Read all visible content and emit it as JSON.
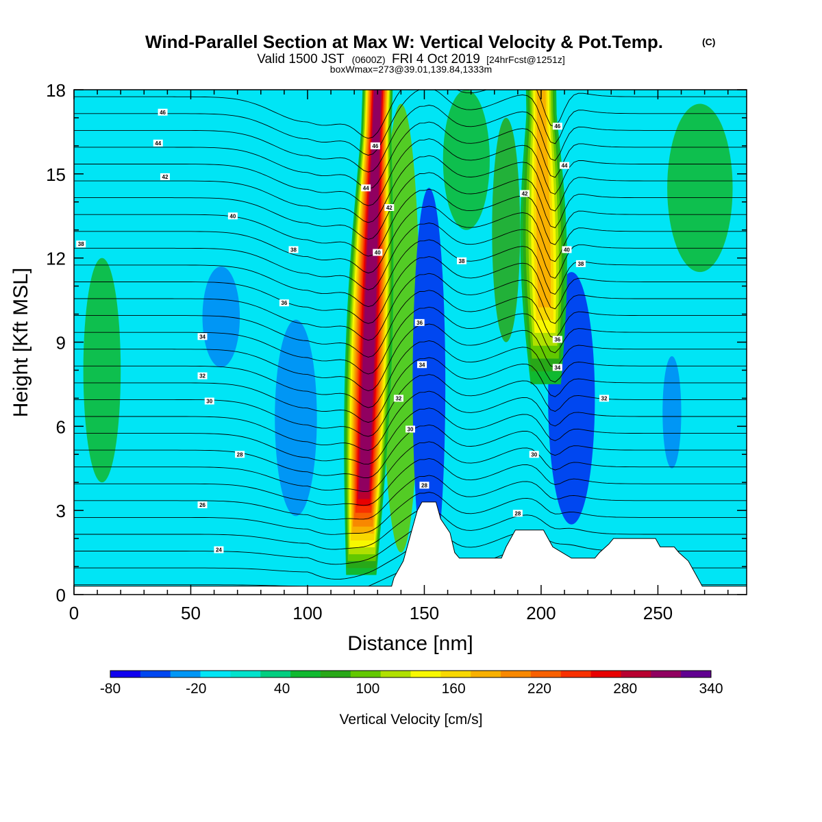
{
  "chart_data": {
    "type": "heatmap",
    "title": "Wind-Parallel Section at Max W: Vertical Velocity & Pot.Temp.",
    "copyright": "(C)",
    "subtitle_main": "Valid 1500 JST",
    "subtitle_utc": "(0600Z)",
    "subtitle_date": "FRI 4 Oct 2019",
    "subtitle_fcst": "[24hrFcst@1251z]",
    "subtitle2": "boxWmax=273@39.01,139.84,1333m",
    "xlabel": "Distance [nm]",
    "ylabel": "Height [Kft MSL]",
    "xlim": [
      0,
      288
    ],
    "ylim": [
      0,
      18
    ],
    "xticks": [
      {
        "v": 0,
        "label": "0"
      },
      {
        "v": 50,
        "label": "50"
      },
      {
        "v": 100,
        "label": "100"
      },
      {
        "v": 150,
        "label": "150"
      },
      {
        "v": 200,
        "label": "200"
      },
      {
        "v": 250,
        "label": "250"
      }
    ],
    "yticks": [
      {
        "v": 0,
        "label": "0"
      },
      {
        "v": 3,
        "label": "3"
      },
      {
        "v": 6,
        "label": "6"
      },
      {
        "v": 9,
        "label": "9"
      },
      {
        "v": 12,
        "label": "12"
      },
      {
        "v": 15,
        "label": "15"
      },
      {
        "v": 18,
        "label": "18"
      }
    ],
    "colorbar": {
      "label": "Vertical Velocity [cm/s]",
      "min": -80,
      "max": 340,
      "step": 20,
      "tick_labels": [
        {
          "v": -80,
          "label": "-80"
        },
        {
          "v": -20,
          "label": "-20"
        },
        {
          "v": 40,
          "label": "40"
        },
        {
          "v": 100,
          "label": "100"
        },
        {
          "v": 160,
          "label": "160"
        },
        {
          "v": 220,
          "label": "220"
        },
        {
          "v": 280,
          "label": "280"
        },
        {
          "v": 340,
          "label": "340"
        }
      ],
      "colors": [
        "#1000ee",
        "#0047f0",
        "#0096f5",
        "#00e5f5",
        "#00e3cc",
        "#00ce80",
        "#10b930",
        "#28a818",
        "#62c800",
        "#b0e000",
        "#f8f800",
        "#f8d800",
        "#f8b000",
        "#f88800",
        "#f86000",
        "#f83000",
        "#e80000",
        "#b80030",
        "#900060",
        "#600090"
      ]
    },
    "updrafts": [
      {
        "name": "updraft-1",
        "x_top": 130,
        "x_bottom": 123,
        "y_base": 0.7,
        "peak": 290
      },
      {
        "name": "updraft-2",
        "x_top": 200,
        "x_bottom": 202,
        "y_base": 7.5,
        "peak": 160
      }
    ],
    "downdrafts": [
      {
        "name": "downdraft-west-ridge",
        "x": 63,
        "y": 9.9,
        "w": 8,
        "h": 1.8,
        "value": -30
      },
      {
        "name": "downdraft-left",
        "x": 95,
        "y": 6.3,
        "w": 9,
        "h": 3.5,
        "value": -30
      },
      {
        "name": "downdraft-middle",
        "x": 152,
        "y": 7.5,
        "w": 7,
        "h": 7.0,
        "value": -50
      },
      {
        "name": "downdraft-right",
        "x": 213,
        "y": 7.0,
        "w": 10,
        "h": 4.5,
        "value": -50
      },
      {
        "name": "downdraft-far-right",
        "x": 256,
        "y": 6.5,
        "w": 4,
        "h": 2.0,
        "value": -30
      }
    ],
    "green_zones": [
      {
        "x": 12,
        "y": 8.0,
        "w": 8,
        "h": 4.0,
        "value": 40
      },
      {
        "x": 268,
        "y": 14.5,
        "w": 14,
        "h": 3.0,
        "value": 40
      },
      {
        "x": 168,
        "y": 15.5,
        "w": 10,
        "h": 2.5,
        "value": 40
      },
      {
        "x": 140,
        "y": 9.5,
        "w": 8,
        "h": 8.0,
        "value": 80
      },
      {
        "x": 185,
        "y": 13.0,
        "w": 6,
        "h": 4.0,
        "value": 60
      }
    ],
    "terrain": [
      [
        0,
        0.3
      ],
      [
        136,
        0.3
      ],
      [
        137,
        0.6
      ],
      [
        139,
        0.9
      ],
      [
        141,
        1.2
      ],
      [
        143,
        1.8
      ],
      [
        145,
        2.4
      ],
      [
        147,
        3.0
      ],
      [
        149,
        3.3
      ],
      [
        155,
        3.3
      ],
      [
        157,
        2.7
      ],
      [
        161,
        2.2
      ],
      [
        163,
        1.5
      ],
      [
        165,
        1.3
      ],
      [
        183,
        1.3
      ],
      [
        185,
        1.7
      ],
      [
        187,
        2.0
      ],
      [
        189,
        2.3
      ],
      [
        201,
        2.3
      ],
      [
        203,
        2.0
      ],
      [
        205,
        1.7
      ],
      [
        209,
        1.5
      ],
      [
        213,
        1.3
      ],
      [
        223,
        1.3
      ],
      [
        225,
        1.5
      ],
      [
        229,
        1.8
      ],
      [
        231,
        2.0
      ],
      [
        249,
        2.0
      ],
      [
        251,
        1.7
      ],
      [
        257,
        1.7
      ],
      [
        259,
        1.5
      ],
      [
        263,
        1.2
      ],
      [
        265,
        0.9
      ],
      [
        267,
        0.6
      ],
      [
        269,
        0.3
      ],
      [
        288,
        0.3
      ]
    ],
    "theta_contours": {
      "base": 290,
      "step": 2,
      "count": 30
    },
    "contour_labels": [
      {
        "x": 38,
        "y": 17.2,
        "label": "46"
      },
      {
        "x": 36,
        "y": 16.1,
        "label": "44"
      },
      {
        "x": 39,
        "y": 14.9,
        "label": "42"
      },
      {
        "x": 68,
        "y": 13.5,
        "label": "40"
      },
      {
        "x": 3,
        "y": 12.5,
        "label": "38"
      },
      {
        "x": 94,
        "y": 12.3,
        "label": "38"
      },
      {
        "x": 90,
        "y": 10.4,
        "label": "36"
      },
      {
        "x": 55,
        "y": 9.2,
        "label": "34"
      },
      {
        "x": 55,
        "y": 7.8,
        "label": "32"
      },
      {
        "x": 58,
        "y": 6.9,
        "label": "30"
      },
      {
        "x": 71,
        "y": 5.0,
        "label": "28"
      },
      {
        "x": 55,
        "y": 3.2,
        "label": "26"
      },
      {
        "x": 62,
        "y": 1.6,
        "label": "24"
      },
      {
        "x": 129,
        "y": 16.0,
        "label": "46"
      },
      {
        "x": 125,
        "y": 14.5,
        "label": "44"
      },
      {
        "x": 135,
        "y": 13.8,
        "label": "42"
      },
      {
        "x": 130,
        "y": 12.2,
        "label": "40"
      },
      {
        "x": 166,
        "y": 11.9,
        "label": "38"
      },
      {
        "x": 148,
        "y": 9.7,
        "label": "36"
      },
      {
        "x": 149,
        "y": 8.2,
        "label": "34"
      },
      {
        "x": 139,
        "y": 7.0,
        "label": "32"
      },
      {
        "x": 144,
        "y": 5.9,
        "label": "30"
      },
      {
        "x": 150,
        "y": 3.9,
        "label": "28"
      },
      {
        "x": 207,
        "y": 16.7,
        "label": "46"
      },
      {
        "x": 210,
        "y": 15.3,
        "label": "44"
      },
      {
        "x": 193,
        "y": 14.3,
        "label": "42"
      },
      {
        "x": 211,
        "y": 12.3,
        "label": "40"
      },
      {
        "x": 217,
        "y": 11.8,
        "label": "38"
      },
      {
        "x": 207,
        "y": 9.1,
        "label": "36"
      },
      {
        "x": 207,
        "y": 8.1,
        "label": "34"
      },
      {
        "x": 227,
        "y": 7.0,
        "label": "32"
      },
      {
        "x": 197,
        "y": 5.0,
        "label": "30"
      },
      {
        "x": 190,
        "y": 2.9,
        "label": "28"
      }
    ]
  }
}
